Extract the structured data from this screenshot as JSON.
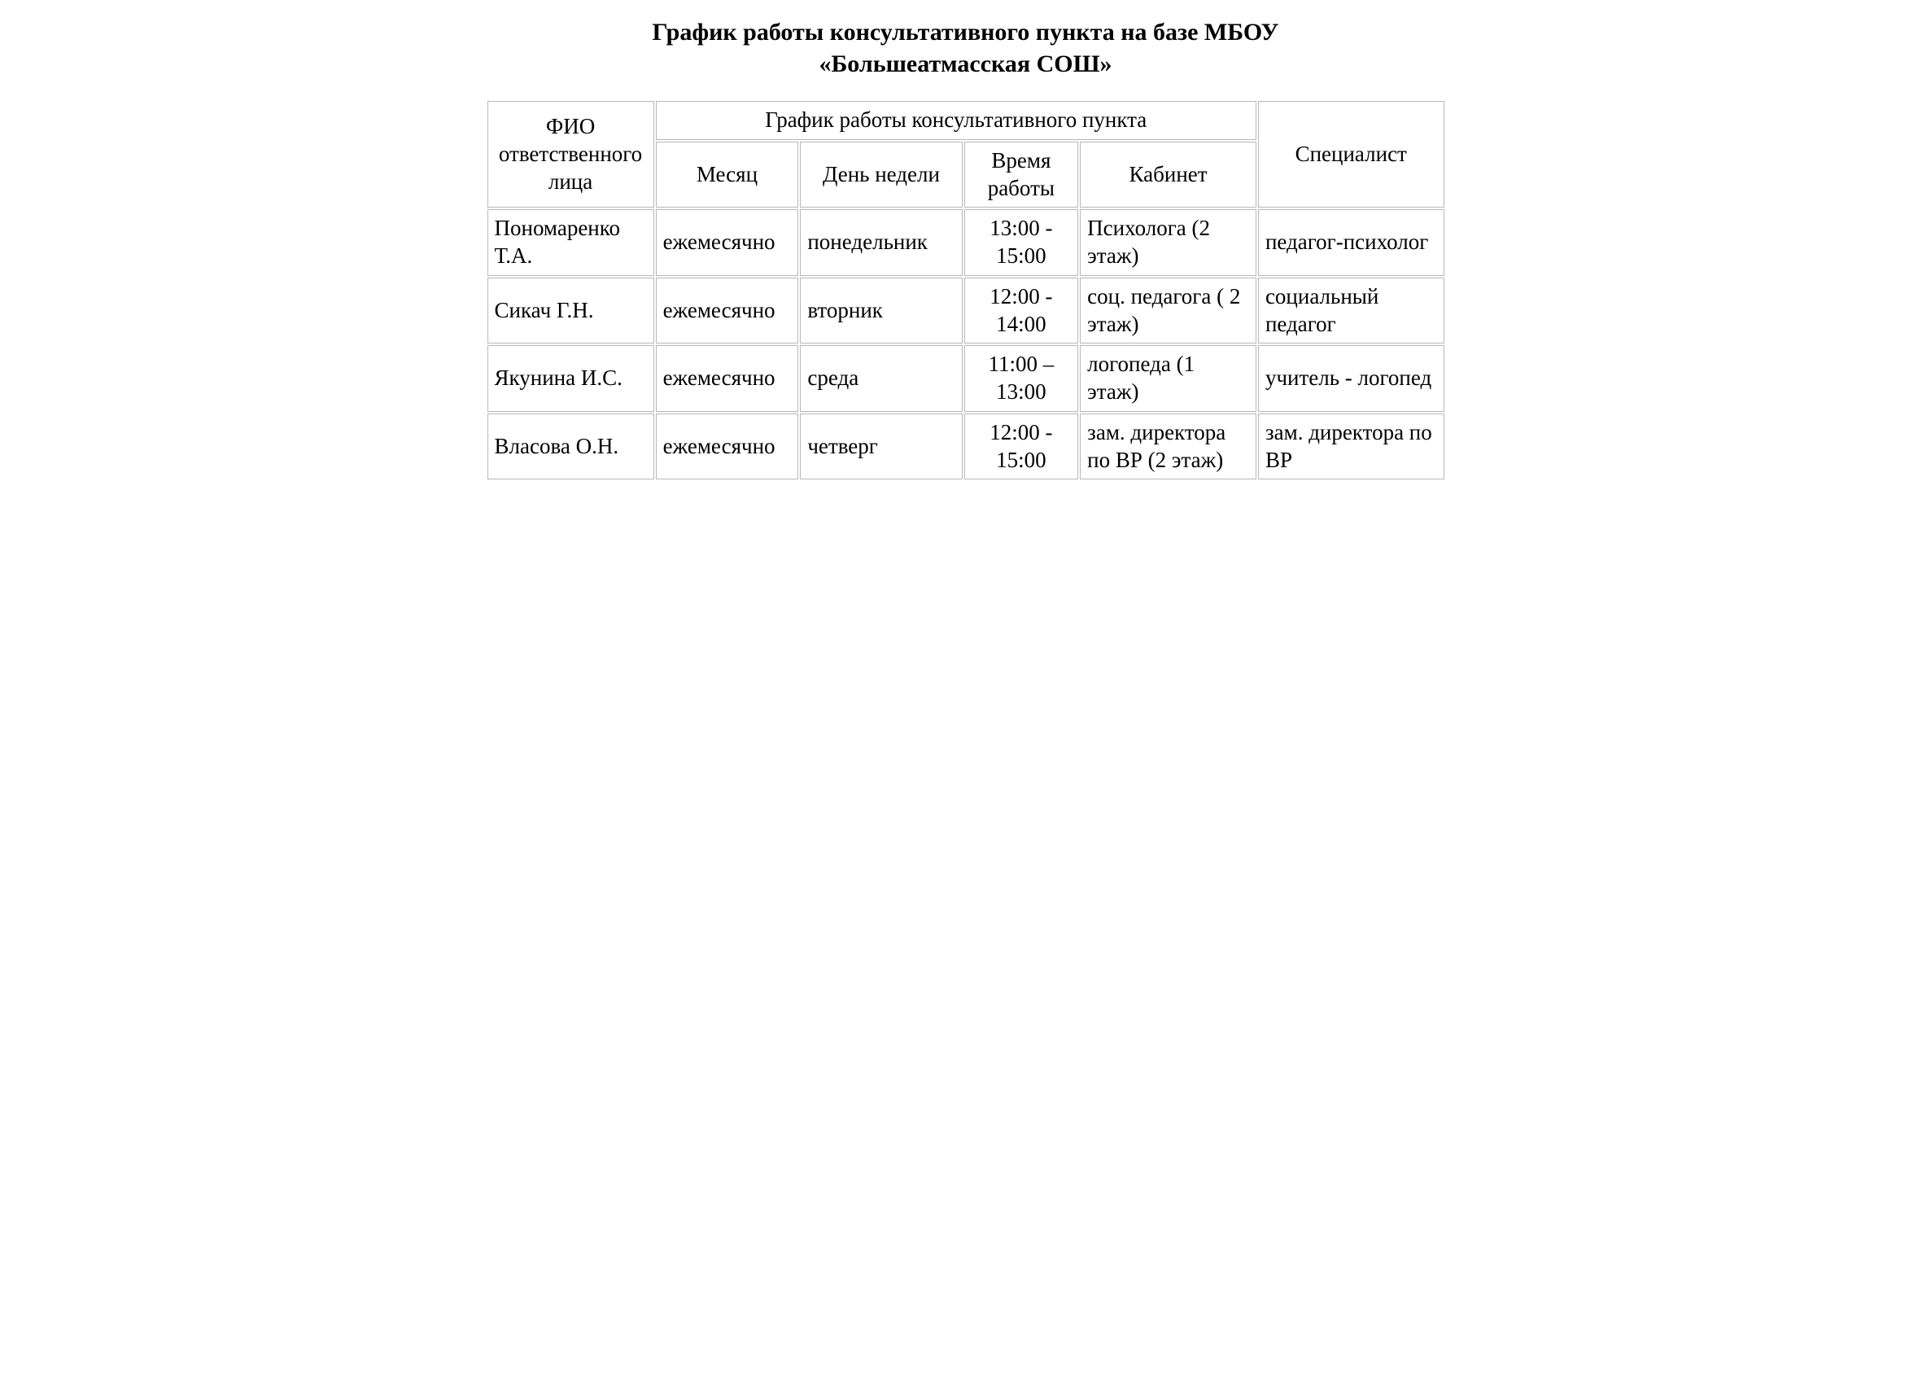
{
  "document": {
    "title_line1": "График работы консультативного пункта на базе МБОУ",
    "title_line2": "«Большеатмасская СОШ»"
  },
  "table": {
    "type": "table",
    "background_color": "#ffffff",
    "border_color": "#b8b8b8",
    "text_color": "#000000",
    "heading_fontsize_pt": 22,
    "cell_fontsize_pt": 21,
    "column_widths_pct": [
      17.5,
      15,
      17,
      12,
      18.5,
      19.5
    ],
    "headers": {
      "responsible": "ФИО ответственного лица",
      "schedule_group": "График работы консультативного пункта",
      "month": "Месяц",
      "weekday": "День недели",
      "time": "Время работы",
      "room": "Кабинет",
      "specialist": "Специалист"
    },
    "rows": [
      {
        "responsible": "Пономаренко Т.А.",
        "month": "ежемесячно",
        "weekday": "понедельник",
        "time": "13:00 - 15:00",
        "room": "Психолога (2 этаж)",
        "specialist": "педагог-психолог"
      },
      {
        "responsible": "Сикач Г.Н.",
        "month": "ежемесячно",
        "weekday": "вторник",
        "time": "12:00 - 14:00",
        "room": "соц. педагога ( 2 этаж)",
        "specialist": "социальный педагог"
      },
      {
        "responsible": "Якунина И.С.",
        "month": "ежемесячно",
        "weekday": "среда",
        "time": "11:00 – 13:00",
        "room": "логопеда (1 этаж)",
        "specialist": "учитель - логопед"
      },
      {
        "responsible": "Власова О.Н.",
        "month": "ежемесячно",
        "weekday": "четверг",
        "time": "12:00 - 15:00",
        "room": "зам. директора по ВР (2 этаж)",
        "specialist": "зам. директора по ВР"
      }
    ]
  }
}
